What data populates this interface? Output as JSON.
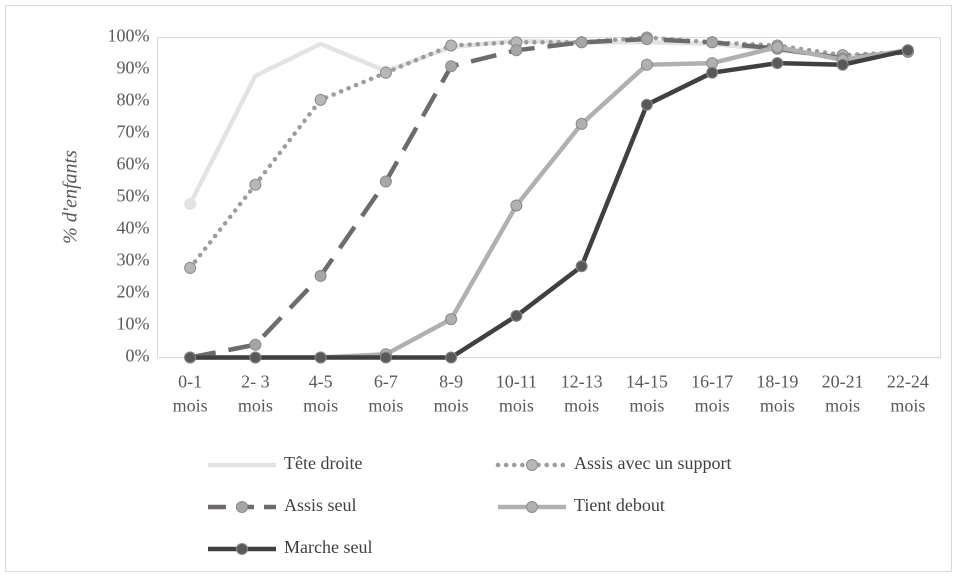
{
  "chart_data": {
    "type": "line",
    "title": "",
    "xlabel": "",
    "ylabel": "% d'enfants",
    "ylim": [
      0,
      100
    ],
    "y_ticks": [
      "0%",
      "10%",
      "20%",
      "30%",
      "40%",
      "50%",
      "60%",
      "70%",
      "80%",
      "90%",
      "100%"
    ],
    "categories": [
      [
        "0-1",
        "mois"
      ],
      [
        "2- 3",
        "mois"
      ],
      [
        "4-5",
        "mois"
      ],
      [
        "6-7",
        "mois"
      ],
      [
        "8-9",
        "mois"
      ],
      [
        "10-11",
        "mois"
      ],
      [
        "12-13",
        "mois"
      ],
      [
        "14-15",
        "mois"
      ],
      [
        "16-17",
        "mois"
      ],
      [
        "18-19",
        "mois"
      ],
      [
        "20-21",
        "mois"
      ],
      [
        "22-24",
        "mois"
      ]
    ],
    "grid": false,
    "legend_position": "bottom",
    "series": [
      {
        "name": "Tête droite",
        "values": [
          48,
          88,
          98,
          89.5,
          97,
          99,
          98.5,
          98.5,
          98,
          96,
          94,
          95.5
        ],
        "color": "#e3e3e3",
        "marker_color": "#e3e3e3",
        "dash": "solid",
        "show_markers": [
          true,
          false,
          false,
          true,
          false,
          false,
          false,
          false,
          false,
          false,
          false,
          false
        ]
      },
      {
        "name": "Assis avec un support",
        "values": [
          28,
          54,
          80.5,
          89,
          97.5,
          98.5,
          98.5,
          100,
          98.5,
          97.5,
          94.5,
          95.5
        ],
        "color": "#9c9c9c",
        "marker_color": "#b7b7b7",
        "dash": "dot",
        "show_markers": true
      },
      {
        "name": "Assis seul",
        "values": [
          0,
          4,
          25.5,
          55,
          91,
          96,
          98.5,
          99.5,
          98.5,
          96.5,
          93.5,
          95.5
        ],
        "color": "#6e6a6e",
        "marker_color": "#a6a6a6",
        "dash": "dash",
        "show_markers": true
      },
      {
        "name": "Tient debout",
        "values": [
          0,
          0,
          0,
          1,
          12,
          47.5,
          73,
          91.5,
          92,
          97,
          93,
          96
        ],
        "color": "#b0b0b0",
        "marker_color": "#b0b0b0",
        "dash": "solid",
        "show_markers": true
      },
      {
        "name": "Marche seul",
        "values": [
          0,
          0,
          0,
          0,
          0,
          13,
          28.5,
          79,
          89,
          92,
          91.5,
          96
        ],
        "color": "#404040",
        "marker_color": "#595959",
        "dash": "solid",
        "show_markers": true
      }
    ]
  }
}
